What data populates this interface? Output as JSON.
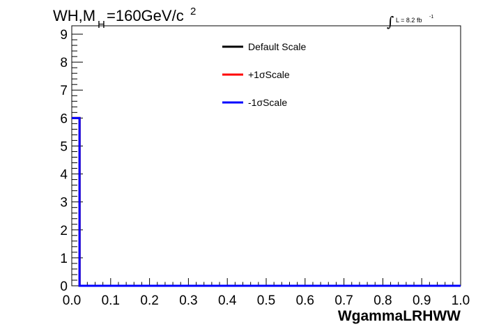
{
  "chart_data": {
    "type": "line",
    "title": {
      "prefix": "WH,M",
      "subscript": "H",
      "value": "=160GeV/c",
      "superscript": "2"
    },
    "luminosity": {
      "symbol": "∫",
      "text": "L = 8.2 fb",
      "superscript": "-1"
    },
    "xlabel": "WgammaLRHWW",
    "ylabel": "",
    "xlim": [
      0.0,
      1.0
    ],
    "ylim": [
      0,
      9.3
    ],
    "x_ticks": [
      "0.0",
      "0.1",
      "0.2",
      "0.3",
      "0.4",
      "0.5",
      "0.6",
      "0.7",
      "0.8",
      "0.9",
      "1.0"
    ],
    "y_ticks": [
      "0",
      "1",
      "2",
      "3",
      "4",
      "5",
      "6",
      "7",
      "8",
      "9"
    ],
    "bin_edges": [
      0.0,
      0.02,
      1.0
    ],
    "series": [
      {
        "name": "Default Scale",
        "color": "#000000",
        "values": [
          6,
          0
        ]
      },
      {
        "name": "+1σScale",
        "color": "#ff0000",
        "values": [
          6,
          0
        ]
      },
      {
        "name": "-1σScale",
        "color": "#0000ff",
        "values": [
          6,
          0
        ]
      }
    ],
    "legend_position": "top-center",
    "grid": false
  }
}
